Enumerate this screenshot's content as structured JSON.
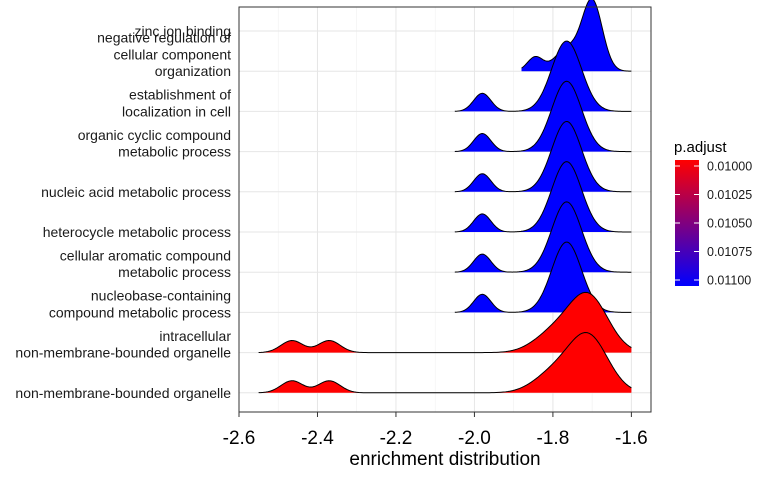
{
  "chart_data": {
    "type": "ridgeline",
    "title": "",
    "xlabel": "enrichment distribution",
    "ylabel": "",
    "xlim": [
      -2.6,
      -1.55
    ],
    "x_ticks": [
      -2.6,
      -2.4,
      -2.2,
      -2.0,
      -1.8,
      -1.6
    ],
    "x_tick_labels": [
      "-2.6",
      "-2.4",
      "-2.2",
      "-2.0",
      "-1.8",
      "-1.6"
    ],
    "grid": true,
    "legend": {
      "title": "p.adjust",
      "position": "right",
      "ticks": [
        0.01,
        0.01025,
        0.0105,
        0.01075,
        0.011
      ],
      "tick_labels": [
        "0.01000",
        "0.01025",
        "0.01050",
        "0.01075",
        "0.01100"
      ],
      "colors": {
        "low": "#ff0000",
        "high": "#0000ff"
      }
    },
    "series": [
      {
        "label_lines": [
          "non-membrane-bounded organelle"
        ],
        "p_adjust": 0.01,
        "x_range": [
          -2.55,
          -1.6
        ],
        "peaks": [
          {
            "x": -2.465,
            "h": 0.3,
            "w": 0.028
          },
          {
            "x": -2.37,
            "h": 0.3,
            "w": 0.028
          },
          {
            "x": -1.8,
            "h": 0.45,
            "w": 0.05
          },
          {
            "x": -1.71,
            "h": 1.4,
            "w": 0.05
          }
        ]
      },
      {
        "label_lines": [
          "intracellular",
          "non-membrane-bounded organelle"
        ],
        "p_adjust": 0.01,
        "x_range": [
          -2.55,
          -1.6
        ],
        "peaks": [
          {
            "x": -2.465,
            "h": 0.3,
            "w": 0.028
          },
          {
            "x": -2.37,
            "h": 0.3,
            "w": 0.028
          },
          {
            "x": -1.8,
            "h": 0.45,
            "w": 0.05
          },
          {
            "x": -1.71,
            "h": 1.4,
            "w": 0.05
          }
        ]
      },
      {
        "label_lines": [
          "nucleobase-containing",
          "compound metabolic process"
        ],
        "p_adjust": 0.011,
        "x_range": [
          -2.05,
          -1.6
        ],
        "peaks": [
          {
            "x": -1.98,
            "h": 0.45,
            "w": 0.022
          },
          {
            "x": -1.765,
            "h": 1.75,
            "w": 0.038
          }
        ]
      },
      {
        "label_lines": [
          "cellular aromatic compound",
          "metabolic process"
        ],
        "p_adjust": 0.011,
        "x_range": [
          -2.05,
          -1.6
        ],
        "peaks": [
          {
            "x": -1.98,
            "h": 0.45,
            "w": 0.022
          },
          {
            "x": -1.765,
            "h": 1.75,
            "w": 0.038
          }
        ]
      },
      {
        "label_lines": [
          "heterocycle metabolic process"
        ],
        "p_adjust": 0.011,
        "x_range": [
          -2.05,
          -1.6
        ],
        "peaks": [
          {
            "x": -1.98,
            "h": 0.45,
            "w": 0.022
          },
          {
            "x": -1.765,
            "h": 1.75,
            "w": 0.038
          }
        ]
      },
      {
        "label_lines": [
          "nucleic acid metabolic process"
        ],
        "p_adjust": 0.011,
        "x_range": [
          -2.05,
          -1.6
        ],
        "peaks": [
          {
            "x": -1.98,
            "h": 0.45,
            "w": 0.022
          },
          {
            "x": -1.765,
            "h": 1.75,
            "w": 0.038
          }
        ]
      },
      {
        "label_lines": [
          "organic cyclic compound",
          "metabolic process"
        ],
        "p_adjust": 0.011,
        "x_range": [
          -2.05,
          -1.6
        ],
        "peaks": [
          {
            "x": -1.98,
            "h": 0.45,
            "w": 0.022
          },
          {
            "x": -1.765,
            "h": 1.75,
            "w": 0.038
          }
        ]
      },
      {
        "label_lines": [
          "establishment of",
          "localization in cell"
        ],
        "p_adjust": 0.011,
        "x_range": [
          -2.05,
          -1.6
        ],
        "peaks": [
          {
            "x": -1.98,
            "h": 0.45,
            "w": 0.022
          },
          {
            "x": -1.765,
            "h": 1.75,
            "w": 0.038
          }
        ]
      },
      {
        "label_lines": [
          "negative regulation of",
          "cellular component",
          "organization"
        ],
        "p_adjust": 0.011,
        "x_range": [
          -1.88,
          -1.6
        ],
        "peaks": [
          {
            "x": -1.845,
            "h": 0.35,
            "w": 0.02
          },
          {
            "x": -1.765,
            "h": 0.55,
            "w": 0.03
          },
          {
            "x": -1.7,
            "h": 1.75,
            "w": 0.026
          }
        ]
      },
      {
        "label_lines": [
          "zinc ion binding"
        ],
        "p_adjust": 0.011,
        "x_range": null,
        "peaks": []
      }
    ]
  }
}
